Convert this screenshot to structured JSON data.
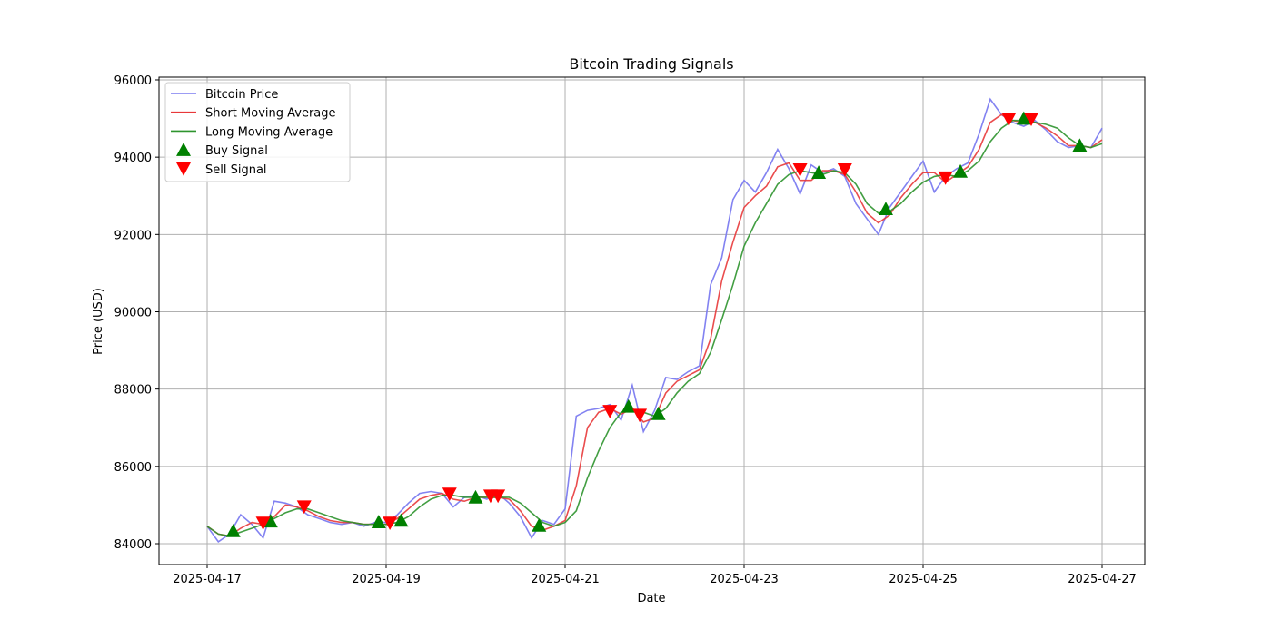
{
  "chart_data": {
    "type": "line",
    "title": "Bitcoin Trading Signals",
    "xlabel": "Date",
    "ylabel": "Price (USD)",
    "xlim": [
      "2025-04-16 11:05",
      "2025-04-27 11:27"
    ],
    "ylim": [
      83460,
      96070
    ],
    "x_ticks": [
      "2025-04-17",
      "2025-04-19",
      "2025-04-21",
      "2025-04-23",
      "2025-04-25",
      "2025-04-27"
    ],
    "y_ticks": [
      84000,
      86000,
      88000,
      90000,
      92000,
      94000,
      96000
    ],
    "grid": true,
    "legend_position": "upper-left",
    "x": [
      "2025-04-17 00:00",
      "2025-04-17 03:00",
      "2025-04-17 06:00",
      "2025-04-17 09:00",
      "2025-04-17 12:00",
      "2025-04-17 15:00",
      "2025-04-17 18:00",
      "2025-04-17 21:00",
      "2025-04-18 00:00",
      "2025-04-18 03:00",
      "2025-04-18 06:00",
      "2025-04-18 09:00",
      "2025-04-18 12:00",
      "2025-04-18 15:00",
      "2025-04-18 18:00",
      "2025-04-18 21:00",
      "2025-04-19 00:00",
      "2025-04-19 03:00",
      "2025-04-19 06:00",
      "2025-04-19 09:00",
      "2025-04-19 12:00",
      "2025-04-19 15:00",
      "2025-04-19 18:00",
      "2025-04-19 21:00",
      "2025-04-20 00:00",
      "2025-04-20 03:00",
      "2025-04-20 06:00",
      "2025-04-20 09:00",
      "2025-04-20 12:00",
      "2025-04-20 15:00",
      "2025-04-20 18:00",
      "2025-04-20 21:00",
      "2025-04-21 00:00",
      "2025-04-21 03:00",
      "2025-04-21 06:00",
      "2025-04-21 09:00",
      "2025-04-21 12:00",
      "2025-04-21 15:00",
      "2025-04-21 18:00",
      "2025-04-21 21:00",
      "2025-04-22 00:00",
      "2025-04-22 03:00",
      "2025-04-22 06:00",
      "2025-04-22 09:00",
      "2025-04-22 12:00",
      "2025-04-22 15:00",
      "2025-04-22 18:00",
      "2025-04-22 21:00",
      "2025-04-23 00:00",
      "2025-04-23 03:00",
      "2025-04-23 06:00",
      "2025-04-23 09:00",
      "2025-04-23 12:00",
      "2025-04-23 15:00",
      "2025-04-23 18:00",
      "2025-04-23 21:00",
      "2025-04-24 00:00",
      "2025-04-24 03:00",
      "2025-04-24 06:00",
      "2025-04-24 09:00",
      "2025-04-24 12:00",
      "2025-04-24 15:00",
      "2025-04-24 18:00",
      "2025-04-24 21:00",
      "2025-04-25 00:00",
      "2025-04-25 03:00",
      "2025-04-25 06:00",
      "2025-04-25 09:00",
      "2025-04-25 12:00",
      "2025-04-25 15:00",
      "2025-04-25 18:00",
      "2025-04-25 21:00",
      "2025-04-26 00:00",
      "2025-04-26 03:00",
      "2025-04-26 06:00",
      "2025-04-26 09:00",
      "2025-04-26 12:00",
      "2025-04-26 15:00",
      "2025-04-26 18:00",
      "2025-04-26 21:00",
      "2025-04-27 00:00"
    ],
    "series": [
      {
        "name": "Bitcoin Price",
        "color": "#7b7bf0",
        "values": [
          84450,
          84050,
          84250,
          84750,
          84500,
          84150,
          85100,
          85050,
          84950,
          84750,
          84650,
          84550,
          84500,
          84550,
          84450,
          84550,
          84550,
          84750,
          85050,
          85300,
          85350,
          85300,
          84950,
          85200,
          85250,
          85150,
          85300,
          85050,
          84700,
          84150,
          84600,
          84500,
          84900,
          87300,
          87450,
          87500,
          87600,
          87200,
          88100,
          86900,
          87450,
          88300,
          88250,
          88450,
          88600,
          90700,
          91400,
          92900,
          93400,
          93100,
          93600,
          94200,
          93700,
          93050,
          93800,
          93600,
          93700,
          93500,
          92800,
          92400,
          92000,
          92700,
          93100,
          93500,
          93900,
          93100,
          93500,
          93700,
          93850,
          94600,
          95500,
          95100,
          94900,
          94800,
          94950,
          94700,
          94400,
          94250,
          94300,
          94250,
          94750
        ]
      },
      {
        "name": "Short Moving Average",
        "color": "#e8383a",
        "values": [
          84450,
          84250,
          84200,
          84400,
          84550,
          84500,
          84700,
          85000,
          84950,
          84850,
          84700,
          84600,
          84550,
          84550,
          84500,
          84500,
          84500,
          84650,
          84900,
          85150,
          85250,
          85300,
          85150,
          85100,
          85200,
          85200,
          85200,
          85150,
          84850,
          84450,
          84350,
          84450,
          84600,
          85500,
          87000,
          87400,
          87500,
          87350,
          87500,
          87150,
          87250,
          87900,
          88200,
          88350,
          88500,
          89300,
          90800,
          91800,
          92700,
          93000,
          93250,
          93750,
          93850,
          93400,
          93400,
          93650,
          93650,
          93550,
          93100,
          92550,
          92300,
          92500,
          92950,
          93300,
          93600,
          93600,
          93350,
          93550,
          93750,
          94200,
          94900,
          95100,
          94950,
          94900,
          94900,
          94750,
          94550,
          94300,
          94300,
          94250,
          94450
        ]
      },
      {
        "name": "Long Moving Average",
        "color": "#2e942e",
        "values": [
          84450,
          84250,
          84200,
          84300,
          84400,
          84500,
          84650,
          84800,
          84900,
          84900,
          84800,
          84700,
          84600,
          84550,
          84500,
          84500,
          84500,
          84550,
          84700,
          84950,
          85150,
          85250,
          85250,
          85200,
          85200,
          85200,
          85200,
          85200,
          85050,
          84800,
          84550,
          84450,
          84550,
          84850,
          85700,
          86400,
          87000,
          87400,
          87450,
          87400,
          87300,
          87500,
          87900,
          88200,
          88400,
          88950,
          89800,
          90700,
          91700,
          92300,
          92800,
          93300,
          93550,
          93650,
          93600,
          93550,
          93650,
          93600,
          93300,
          92800,
          92550,
          92600,
          92800,
          93100,
          93350,
          93500,
          93550,
          93500,
          93650,
          93900,
          94400,
          94750,
          94950,
          94950,
          94900,
          94850,
          94750,
          94500,
          94300,
          94250,
          94350
        ]
      }
    ],
    "signals": [
      {
        "name": "Buy Signal",
        "marker": "triangle-up",
        "color": "#008000",
        "points": [
          {
            "x": "2025-04-17 07:00",
            "y": 84330
          },
          {
            "x": "2025-04-17 17:00",
            "y": 84580
          },
          {
            "x": "2025-04-18 22:00",
            "y": 84560
          },
          {
            "x": "2025-04-19 04:00",
            "y": 84600
          },
          {
            "x": "2025-04-20 00:00",
            "y": 85200
          },
          {
            "x": "2025-04-20 17:00",
            "y": 84470
          },
          {
            "x": "2025-04-21 17:00",
            "y": 87550
          },
          {
            "x": "2025-04-22 01:00",
            "y": 87360
          },
          {
            "x": "2025-04-23 20:00",
            "y": 93600
          },
          {
            "x": "2025-04-24 14:00",
            "y": 92660
          },
          {
            "x": "2025-04-25 10:00",
            "y": 93630
          },
          {
            "x": "2025-04-26 03:00",
            "y": 95000
          },
          {
            "x": "2025-04-26 18:00",
            "y": 94300
          }
        ]
      },
      {
        "name": "Sell Signal",
        "marker": "triangle-down",
        "color": "#ff0000",
        "points": [
          {
            "x": "2025-04-17 15:00",
            "y": 84540
          },
          {
            "x": "2025-04-18 02:00",
            "y": 84960
          },
          {
            "x": "2025-04-19 01:00",
            "y": 84540
          },
          {
            "x": "2025-04-19 17:00",
            "y": 85290
          },
          {
            "x": "2025-04-20 04:00",
            "y": 85240
          },
          {
            "x": "2025-04-20 06:00",
            "y": 85240
          },
          {
            "x": "2025-04-21 12:00",
            "y": 87430
          },
          {
            "x": "2025-04-21 20:00",
            "y": 87330
          },
          {
            "x": "2025-04-23 15:00",
            "y": 93680
          },
          {
            "x": "2025-04-24 03:00",
            "y": 93680
          },
          {
            "x": "2025-04-25 06:00",
            "y": 93470
          },
          {
            "x": "2025-04-25 23:00",
            "y": 94990
          },
          {
            "x": "2025-04-26 05:00",
            "y": 94990
          }
        ]
      }
    ]
  }
}
